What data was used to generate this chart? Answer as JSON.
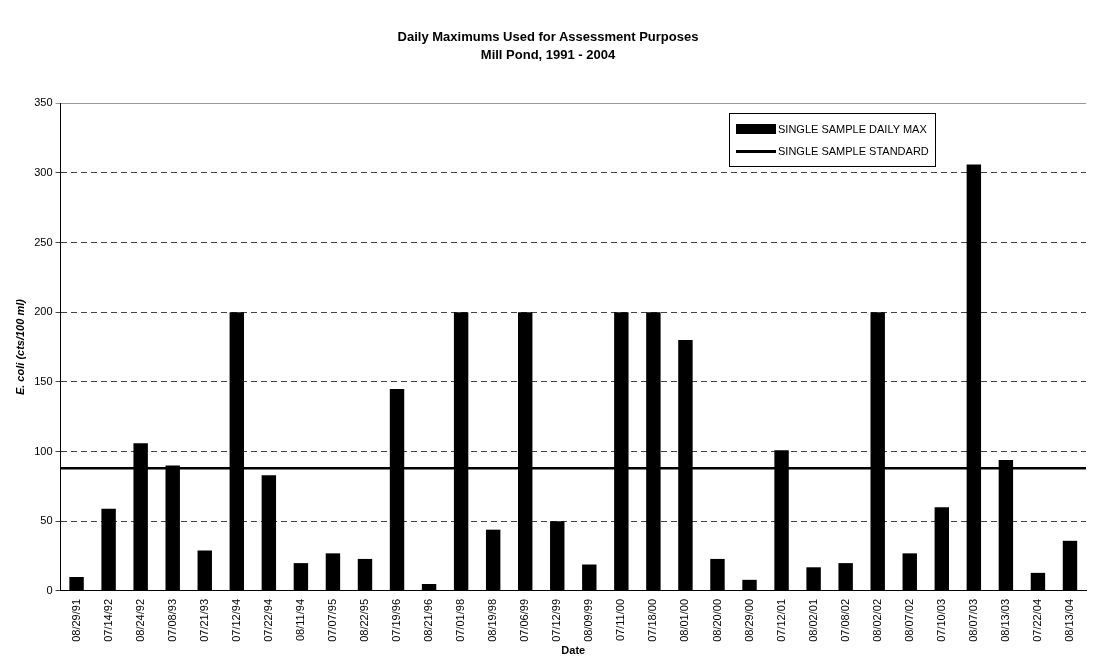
{
  "chart_data": {
    "type": "bar",
    "title": "Daily Maximums Used for Assessment Purposes",
    "subtitle": "Mill Pond, 1991 - 2004",
    "xlabel": "Date",
    "ylabel": "E. coli (cts/100 ml)",
    "categories": [
      "08/29/91",
      "07/14/92",
      "08/24/92",
      "07/08/93",
      "07/21/93",
      "07/12/94",
      "07/22/94",
      "08/11/94",
      "07/07/95",
      "08/22/95",
      "07/19/96",
      "08/21/96",
      "07/01/98",
      "08/19/98",
      "07/06/99",
      "07/12/99",
      "08/09/99",
      "07/11/00",
      "07/18/00",
      "08/01/00",
      "08/20/00",
      "08/29/00",
      "07/12/01",
      "08/02/01",
      "07/08/02",
      "08/02/02",
      "08/07/02",
      "07/10/03",
      "08/07/03",
      "08/13/03",
      "07/22/04",
      "08/13/04"
    ],
    "series": [
      {
        "name": "SINGLE SAMPLE DAILY MAX",
        "color": "#000000",
        "values": [
          10,
          59,
          106,
          90,
          29,
          200,
          83,
          20,
          27,
          23,
          145,
          5,
          200,
          44,
          200,
          50,
          19,
          200,
          200,
          180,
          23,
          8,
          101,
          17,
          20,
          200,
          27,
          60,
          306,
          94,
          13,
          36
        ]
      }
    ],
    "ref_lines": [
      {
        "axis": "y",
        "value": 88,
        "label": "SINGLE SAMPLE STANDARD",
        "color": "#000000",
        "line_style": "solid"
      }
    ],
    "ylim": [
      0,
      350
    ],
    "yticks": [
      0,
      50,
      100,
      150,
      200,
      250,
      300,
      350
    ],
    "grid": "y",
    "legend": "top right"
  }
}
